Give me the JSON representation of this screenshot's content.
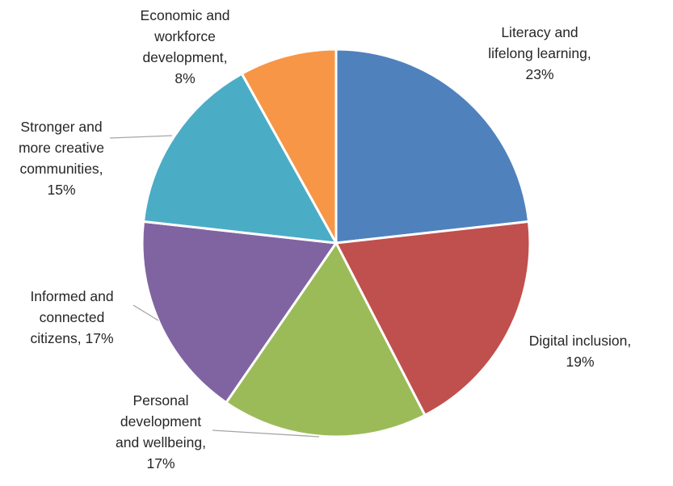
{
  "chart_data": {
    "type": "pie",
    "title": "",
    "legend": "none",
    "slices": [
      {
        "label_lines": [
          "Literacy and",
          "lifelong learning,",
          "23%"
        ],
        "value": 23,
        "color": "#4f81bd"
      },
      {
        "label_lines": [
          "Digital inclusion,",
          "19%"
        ],
        "value": 19,
        "color": "#c0504d"
      },
      {
        "label_lines": [
          "Personal",
          "development",
          "and wellbeing,",
          "17%"
        ],
        "value": 17,
        "color": "#9bbb59"
      },
      {
        "label_lines": [
          "Informed and",
          "connected",
          "citizens, 17%"
        ],
        "value": 17,
        "color": "#8064a2"
      },
      {
        "label_lines": [
          "Stronger and",
          "more creative",
          "communities,",
          "15%"
        ],
        "value": 15,
        "color": "#4bacc6"
      },
      {
        "label_lines": [
          "Economic and",
          "workforce",
          "development,",
          "8%"
        ],
        "value": 8,
        "color": "#f79646"
      }
    ]
  }
}
